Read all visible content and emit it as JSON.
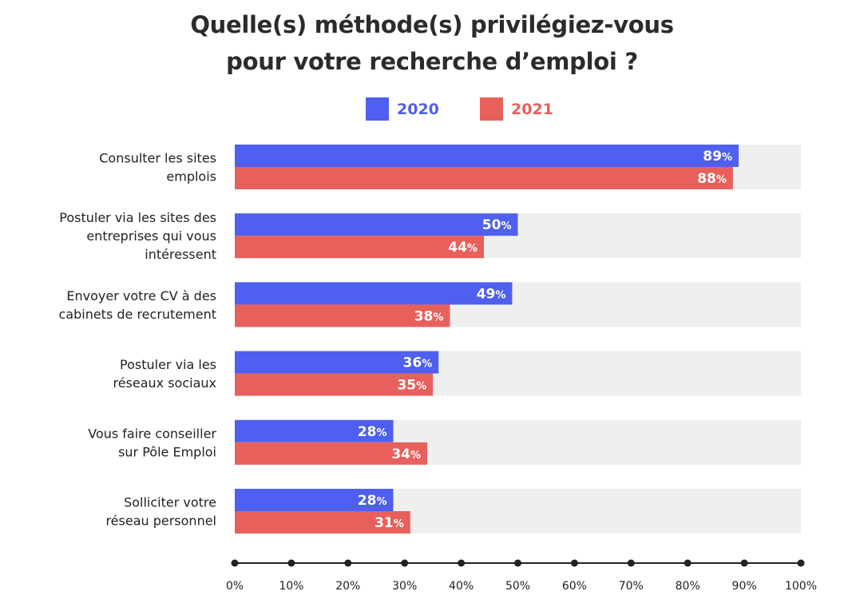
{
  "title_lines": [
    "Quelle(s) méthode(s) privilégiez-vous",
    "pour votre recherche d’emploi ?"
  ],
  "legend": [
    {
      "label": "2020",
      "color": "#4f5ff0"
    },
    {
      "label": "2021",
      "color": "#e8605c"
    }
  ],
  "colors": {
    "track": "#efefef",
    "axis": "#222222",
    "label_text": "#ffffff"
  },
  "chart_data": {
    "type": "bar",
    "orientation": "horizontal",
    "title": "Quelle(s) méthode(s) privilégiez-vous pour votre recherche d’emploi ?",
    "categories": [
      [
        "Consulter les sites",
        "emplois"
      ],
      [
        "Postuler via les sites des",
        "entreprises qui vous",
        "intéressent"
      ],
      [
        "Envoyer votre CV à des",
        "cabinets de recrutement"
      ],
      [
        "Postuler via les",
        "réseaux sociaux"
      ],
      [
        "Vous faire conseiller",
        "sur Pôle Emploi"
      ],
      [
        "Solliciter votre",
        "réseau personnel"
      ]
    ],
    "series": [
      {
        "name": "2020",
        "values": [
          89,
          50,
          49,
          36,
          28,
          28
        ]
      },
      {
        "name": "2021",
        "values": [
          88,
          44,
          38,
          35,
          34,
          31
        ]
      }
    ],
    "value_suffix": "%",
    "xlim": [
      0,
      100
    ],
    "xticks": [
      0,
      10,
      20,
      30,
      40,
      50,
      60,
      70,
      80,
      90,
      100
    ],
    "xtick_labels": [
      "0%",
      "10%",
      "20%",
      "30%",
      "40%",
      "50%",
      "60%",
      "70%",
      "80%",
      "90%",
      "100%"
    ],
    "legend_position": "top-center"
  }
}
